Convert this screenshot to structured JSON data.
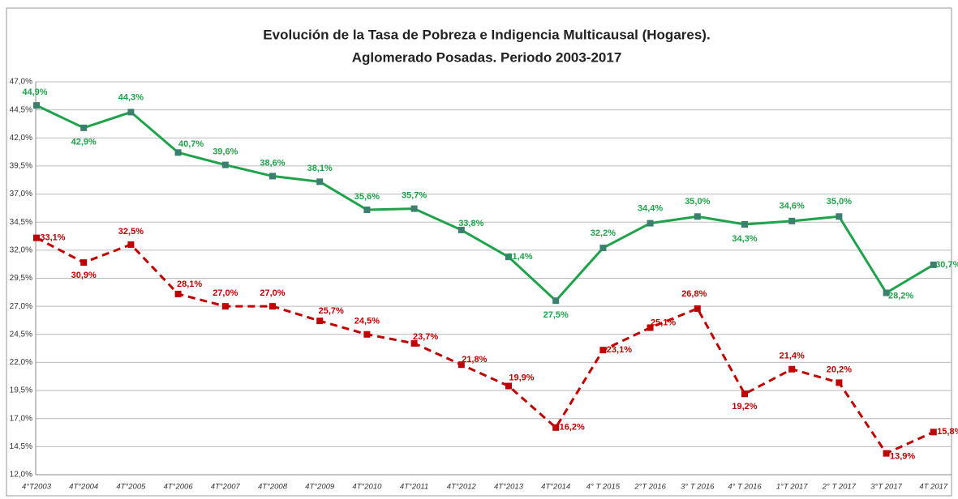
{
  "chart_data": {
    "type": "line",
    "title": "Evolución de la Tasa de Pobreza e Indigencia Multicausal (Hogares).",
    "subtitle": "Aglomerado Posadas. Periodo 2003-2017",
    "categories": [
      "4°T2003",
      "4T°2004",
      "4T°2005",
      "4T°2006",
      "4T°2007",
      "4T°2008",
      "4T°2009",
      "4T°2010",
      "4T°2011",
      "4T°2012",
      "4T°2013",
      "4T°2014",
      "4° T 2015",
      "2°T 2016",
      "3° T 2016",
      "4° T 2016",
      "1°T 2017",
      "2° T 2017",
      "3°T 2017",
      "4T 2017"
    ],
    "series": [
      {
        "color": "#1fa34a",
        "dash": false,
        "values": [
          44.9,
          42.9,
          44.3,
          40.7,
          39.6,
          38.6,
          38.1,
          35.6,
          35.7,
          33.8,
          31.4,
          27.5,
          32.2,
          34.4,
          35.0,
          34.3,
          34.6,
          35.0,
          28.2,
          30.7
        ],
        "value_labels": [
          "44,9%",
          "42,9%",
          "44,3%",
          "40,7%",
          "39,6%",
          "38,6%",
          "38,1%",
          "35,6%",
          "35,7%",
          "33,8%",
          "31,4%",
          "27,5%",
          "32,2%",
          "34,4%",
          "35,0%",
          "34,3%",
          "34,6%",
          "35,0%",
          "28,2%",
          "30,7%"
        ]
      },
      {
        "color": "#c00000",
        "dash": true,
        "values": [
          33.1,
          30.9,
          32.5,
          28.1,
          27.0,
          27.0,
          25.7,
          24.5,
          23.7,
          21.8,
          19.9,
          16.2,
          23.1,
          25.1,
          26.8,
          19.2,
          21.4,
          20.2,
          13.9,
          15.8
        ],
        "value_labels": [
          "33,1%",
          "30,9%",
          "32,5%",
          "28,1%",
          "27,0%",
          "27,0%",
          "25,7%",
          "24,5%",
          "23,7%",
          "21,8%",
          "19,9%",
          "16,2%",
          "23,1%",
          "25,1%",
          "26,8%",
          "19,2%",
          "21,4%",
          "20,2%",
          "13,9%",
          "15,8%"
        ]
      }
    ],
    "ylim": [
      12,
      47
    ],
    "yticks": [
      {
        "value": 12,
        "label": "12,0%"
      },
      {
        "value": 14.5,
        "label": "14,5%"
      },
      {
        "value": 17,
        "label": "17,0%"
      },
      {
        "value": 19.5,
        "label": "19,5%"
      },
      {
        "value": 22,
        "label": "22,0%"
      },
      {
        "value": 24.5,
        "label": "24,5%"
      },
      {
        "value": 27,
        "label": "27,0%"
      },
      {
        "value": 29.5,
        "label": "29,5%"
      },
      {
        "value": 32,
        "label": "32,0%"
      },
      {
        "value": 34.5,
        "label": "34,5%"
      },
      {
        "value": 37,
        "label": "37,0%"
      },
      {
        "value": 39.5,
        "label": "39,5%"
      },
      {
        "value": 42,
        "label": "42,0%"
      },
      {
        "value": 44.5,
        "label": "44,5%"
      },
      {
        "value": 47,
        "label": "47,0%"
      }
    ],
    "grid": true
  }
}
